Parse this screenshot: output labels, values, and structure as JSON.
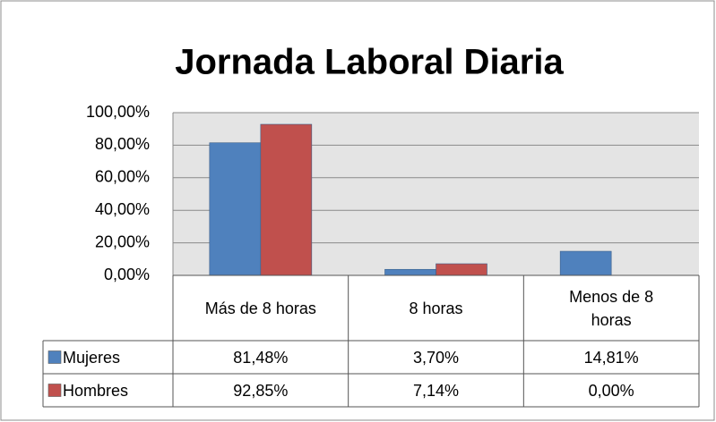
{
  "chart_data": {
    "type": "bar",
    "title": "Jornada Laboral Diaria",
    "categories": [
      "Más de 8 horas",
      "8 horas",
      "Menos de 8 horas"
    ],
    "series": [
      {
        "name": "Mujeres",
        "color": "#4f81bd",
        "values": [
          81.48,
          3.7,
          14.81
        ],
        "value_labels": [
          "81,48%",
          "3,70%",
          "14,81%"
        ]
      },
      {
        "name": "Hombres",
        "color": "#c0504d",
        "values": [
          92.85,
          7.14,
          0.0
        ],
        "value_labels": [
          "92,85%",
          "7,14%",
          "0,00%"
        ]
      }
    ],
    "ylim": [
      0,
      100
    ],
    "yticks": [
      {
        "value": 0,
        "label": "0,00%"
      },
      {
        "value": 20,
        "label": "20,00%"
      },
      {
        "value": 40,
        "label": "40,00%"
      },
      {
        "value": 60,
        "label": "60,00%"
      },
      {
        "value": 80,
        "label": "80,00%"
      },
      {
        "value": 100,
        "label": "100,00%"
      }
    ],
    "grid": true
  }
}
